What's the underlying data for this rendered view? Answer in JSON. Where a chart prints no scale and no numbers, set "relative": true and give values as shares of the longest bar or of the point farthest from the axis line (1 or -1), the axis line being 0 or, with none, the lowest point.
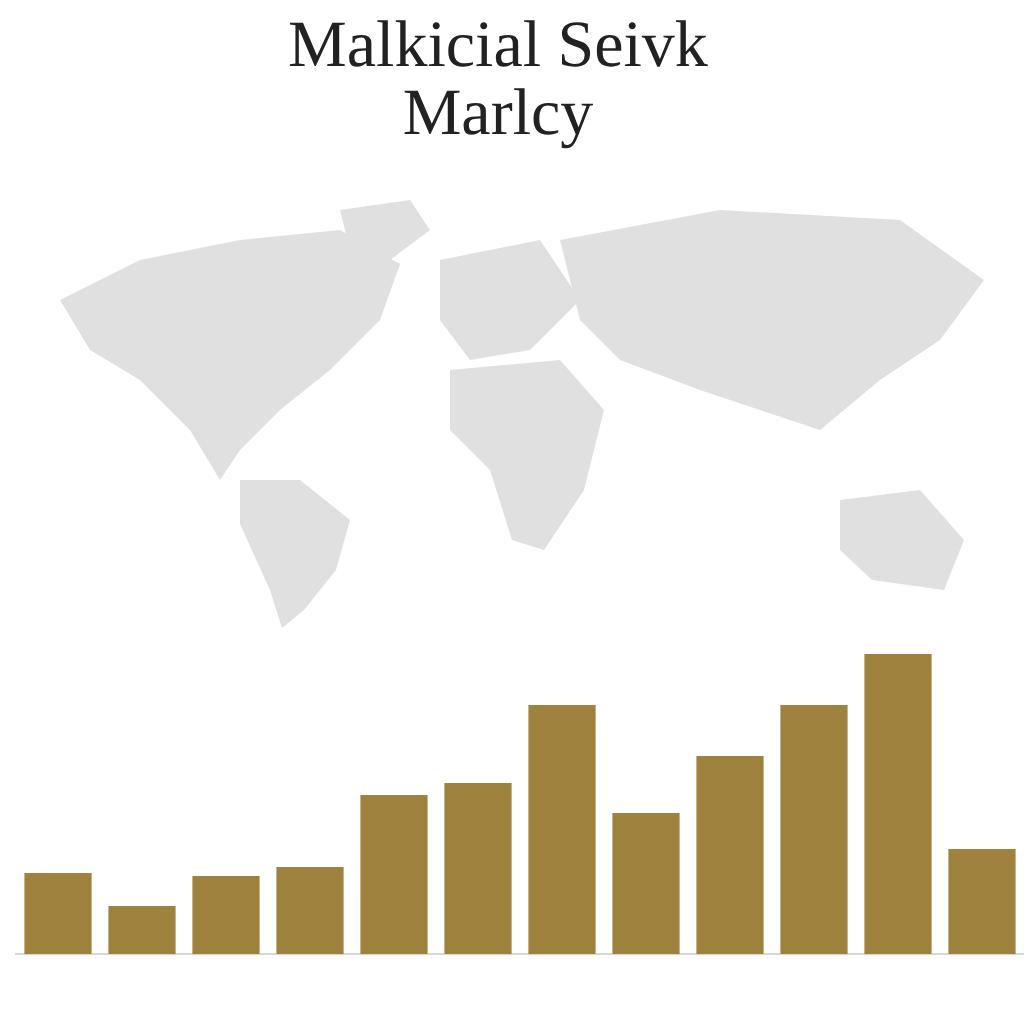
{
  "chart_data": {
    "type": "bar",
    "title": "Malkicial Seivk Marlcy",
    "categories": [
      null,
      null,
      null,
      null,
      null,
      null,
      null,
      null,
      null,
      null,
      null,
      null
    ],
    "values": [
      0.27,
      0.16,
      0.26,
      0.29,
      0.53,
      0.57,
      0.83,
      0.47,
      0.66,
      0.83,
      1,
      0.35
    ],
    "color": "#a0823f",
    "relative": true
  }
}
